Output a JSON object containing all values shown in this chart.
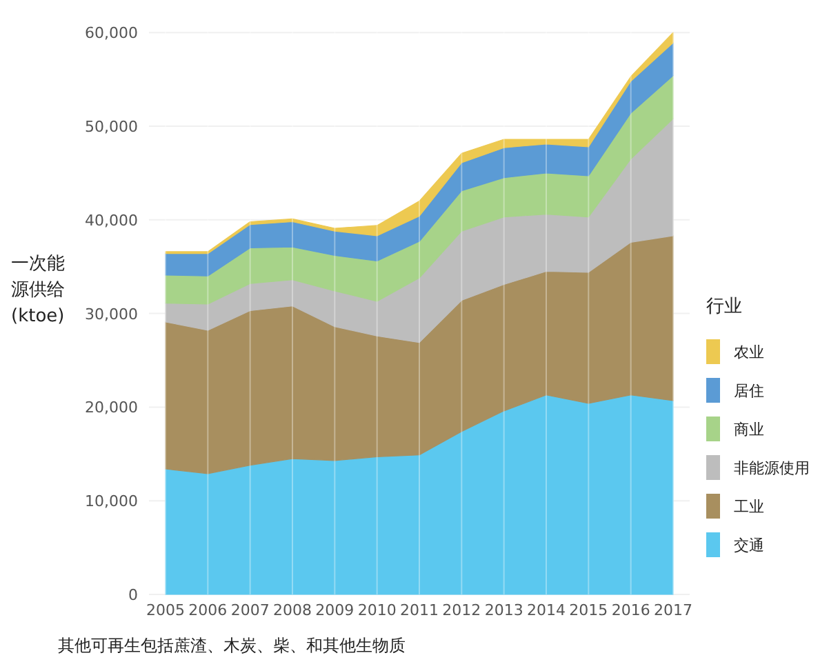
{
  "chart_data": {
    "type": "area",
    "stacked": true,
    "ylabel": "一次能源供给 (ktoe)",
    "legend_title": "行业",
    "legend": "right",
    "grid": true,
    "categories": [
      "2005",
      "2006",
      "2007",
      "2008",
      "2009",
      "2010",
      "2011",
      "2012",
      "2013",
      "2014",
      "2015",
      "2016",
      "2017"
    ],
    "ylim": [
      0,
      62000
    ],
    "yticks": [
      {
        "value": 0,
        "label": "0"
      },
      {
        "value": 10000,
        "label": "10,000"
      },
      {
        "value": 20000,
        "label": "20,000"
      },
      {
        "value": 30000,
        "label": "30,000"
      },
      {
        "value": 40000,
        "label": "40,000"
      },
      {
        "value": 50000,
        "label": "50,000"
      },
      {
        "value": 60000,
        "label": "60,000"
      }
    ],
    "series": [
      {
        "name": "交通",
        "color": "#5bc8ef",
        "values": [
          13400,
          12900,
          13800,
          14500,
          14300,
          14700,
          14900,
          17400,
          19600,
          21300,
          20400,
          21300,
          20700
        ]
      },
      {
        "name": "工业",
        "color": "#a88f5f",
        "values": [
          15700,
          15300,
          16500,
          16300,
          14300,
          12900,
          12000,
          14000,
          13500,
          13200,
          14000,
          16300,
          17600
        ]
      },
      {
        "name": "非能源使用",
        "color": "#bdbdbd",
        "values": [
          2000,
          2800,
          2900,
          2800,
          3800,
          3700,
          6900,
          7400,
          7200,
          6100,
          5900,
          8900,
          12500
        ]
      },
      {
        "name": "商业",
        "color": "#a7d389",
        "values": [
          3000,
          3000,
          3800,
          3500,
          3800,
          4300,
          3900,
          4300,
          4200,
          4400,
          4400,
          4900,
          4600
        ]
      },
      {
        "name": "居住",
        "color": "#5b9bd5",
        "values": [
          2300,
          2400,
          2500,
          2700,
          2600,
          2700,
          2700,
          3000,
          3200,
          3100,
          3100,
          3400,
          3500
        ]
      },
      {
        "name": "农业",
        "color": "#edc951",
        "values": [
          200,
          200,
          300,
          300,
          300,
          1100,
          1600,
          1000,
          900,
          500,
          800,
          500,
          1100
        ]
      }
    ],
    "annotations": [
      "其他可再生包括蔗渣、木炭、柴、和其他生物质"
    ]
  }
}
